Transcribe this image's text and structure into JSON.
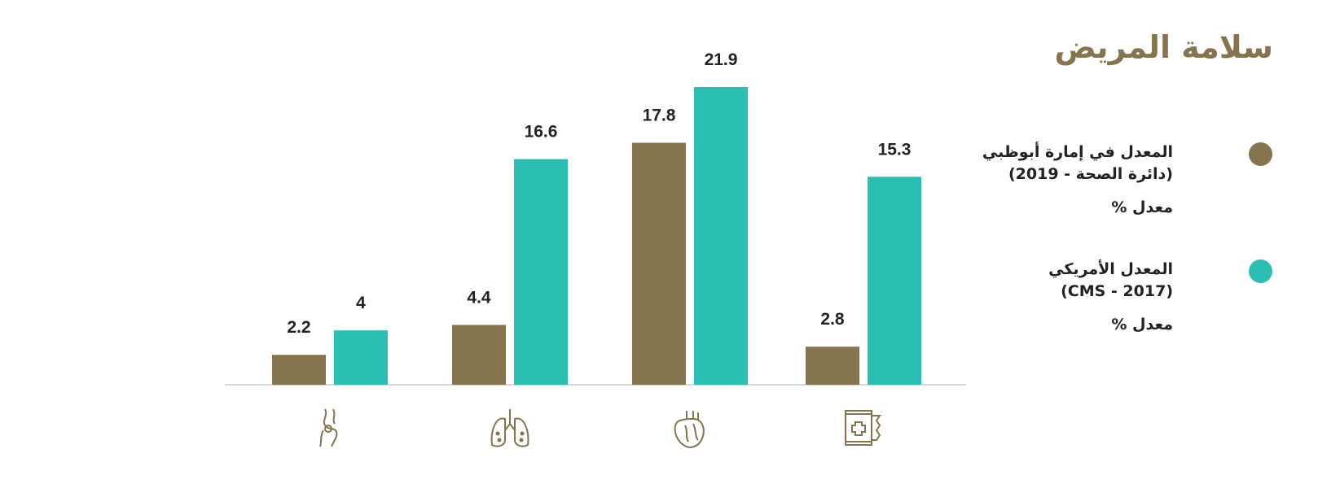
{
  "chart_data": {
    "type": "bar",
    "title": "سلامة المريض",
    "categories": [
      null,
      null,
      null,
      null
    ],
    "legend_note": "معدل %",
    "series": [
      {
        "name": "المعدل  في إمارة أبوظبي\n(دائرة الصحة -  2019)",
        "color": "#85744d",
        "values": [
          2.2,
          4.4,
          17.8,
          2.8
        ]
      },
      {
        "name": "المعدل الأمريكي\n(CMS - 2017)",
        "color": "#2bbfb3",
        "values": [
          4,
          16.6,
          21.9,
          15.3
        ]
      }
    ]
  }
}
